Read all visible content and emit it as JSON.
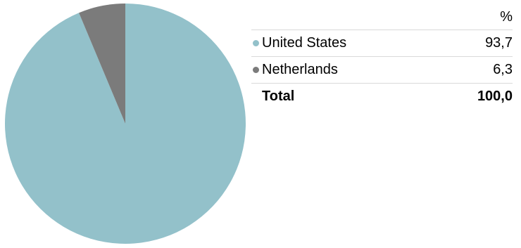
{
  "chart_data": {
    "type": "pie",
    "slices": [
      {
        "label": "United States",
        "value": 93.7,
        "display": "93,7",
        "color": "#93c1ca"
      },
      {
        "label": "Netherlands",
        "value": 6.3,
        "display": "6,3",
        "color": "#7b7b7b"
      }
    ],
    "total": {
      "label": "Total",
      "display": "100,0"
    },
    "unit": "%",
    "start_angle": "top",
    "direction": "clockwise"
  }
}
